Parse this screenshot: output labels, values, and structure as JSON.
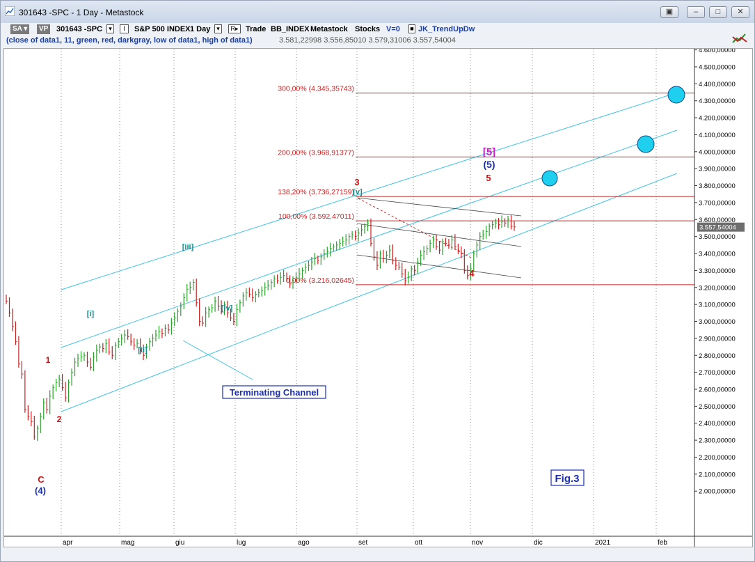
{
  "window": {
    "title": "301643 -SPC - 1 Day - Metastock",
    "buttons": [
      "▣",
      "–",
      "□",
      "✕"
    ]
  },
  "toolbar": {
    "sa_chip": "SA",
    "vp_chip": "VP",
    "symbol": "301643 -SPC",
    "indicator_box": "I",
    "instrument": "S&P 500 INDEX",
    "period": "1 Day",
    "r_box": "R",
    "trade": "Trade",
    "source": "BB_INDEX",
    "vendor": "Metastock",
    "category": "Stocks",
    "v_flag": "V=0",
    "expert": "JK_TrendUpDw",
    "formula": "(close of data1,  11,  green,  red,  darkgray,  low of data1,  high of data1)",
    "values": "3.581,22998  3.556,85010  3.579,31006  3.557,54004"
  },
  "chart_data": {
    "type": "candlestick",
    "y_axis": {
      "ticks": [
        "4.600,00000",
        "4.500,00000",
        "4.400,00000",
        "4.300,00000",
        "4.200,00000",
        "4.100,00000",
        "4.000,00000",
        "3.900,00000",
        "3.800,00000",
        "3.700,00000",
        "3.600,00000",
        "3.500,00000",
        "3.400,00000",
        "3.300,00000",
        "3.200,00000",
        "3.100,00000",
        "3.000,00000",
        "2.900,00000",
        "2.800,00000",
        "2.700,00000",
        "2.600,00000",
        "2.500,00000",
        "2.400,00000",
        "2.300,00000",
        "2.200,00000",
        "2.100,00000",
        "2.000,00000"
      ],
      "tick_values": [
        4600,
        4500,
        4400,
        4300,
        4200,
        4100,
        4000,
        3900,
        3800,
        3700,
        3600,
        3500,
        3400,
        3300,
        3200,
        3100,
        3000,
        2900,
        2800,
        2700,
        2600,
        2500,
        2400,
        2300,
        2200,
        2100,
        2000
      ],
      "last_price_label": "3.557,54004",
      "last_price": 3557.54
    },
    "x_axis": {
      "labels": [
        "apr",
        "mag",
        "giu",
        "lug",
        "ago",
        "set",
        "ott",
        "nov",
        "dic",
        "2021",
        "feb"
      ]
    },
    "fib_levels": [
      {
        "label": "300,00% (4.345,35743)",
        "value": 4345.36
      },
      {
        "label": "200,00% (3.968,91377)",
        "value": 3968.91
      },
      {
        "label": "138,20% (3.736,27159)",
        "value": 3736.27
      },
      {
        "label": "100,00% (3.592,47011)",
        "value": 3592.47
      },
      {
        "label": "0,00% (3.216,02645)",
        "value": 3216.03
      }
    ],
    "wave_labels": {
      "c": "C",
      "c4": "(4)",
      "w1": "1",
      "w2": "2",
      "w3": "3",
      "w4": "4",
      "w5": "5",
      "i": "[i]",
      "ii": "[ii]",
      "iii": "[iii]",
      "iv": "[iv]",
      "v": "[v]",
      "big5": "[5]",
      "p5": "(5)"
    },
    "annotations": {
      "channel": "Terminating Channel",
      "fig": "Fig.3"
    },
    "closes": [
      3120,
      3050,
      2970,
      2880,
      2750,
      2690,
      2480,
      2440,
      2410,
      2320,
      2370,
      2440,
      2520,
      2480,
      2560,
      2610,
      2640,
      2660,
      2610,
      2550,
      2640,
      2700,
      2760,
      2780,
      2790,
      2800,
      2760,
      2730,
      2790,
      2830,
      2850,
      2840,
      2870,
      2820,
      2800,
      2860,
      2880,
      2900,
      2920,
      2910,
      2880,
      2860,
      2870,
      2830,
      2800,
      2850,
      2880,
      2900,
      2920,
      2940,
      2930,
      2960,
      2950,
      2990,
      3020,
      3060,
      3090,
      3140,
      3190,
      3200,
      3230,
      3110,
      3000,
      2990,
      3050,
      3070,
      3080,
      3120,
      3090,
      3060,
      3100,
      3050,
      3020,
      3000,
      3070,
      3110,
      3150,
      3170,
      3160,
      3140,
      3160,
      3170,
      3180,
      3200,
      3210,
      3230,
      3250,
      3240,
      3260,
      3270,
      3250,
      3220,
      3240,
      3260,
      3280,
      3300,
      3320,
      3330,
      3350,
      3370,
      3360,
      3380,
      3400,
      3410,
      3430,
      3440,
      3450,
      3460,
      3470,
      3480,
      3500,
      3510,
      3500,
      3520,
      3540,
      3560,
      3580,
      3460,
      3380,
      3330,
      3400,
      3370,
      3390,
      3420,
      3360,
      3330,
      3320,
      3280,
      3240,
      3260,
      3310,
      3300,
      3350,
      3390,
      3410,
      3430,
      3460,
      3480,
      3440,
      3420,
      3470,
      3460,
      3450,
      3480,
      3440,
      3420,
      3400,
      3300,
      3270,
      3310,
      3400,
      3450,
      3500,
      3510,
      3530,
      3560,
      3570,
      3580,
      3570,
      3590,
      3580,
      3600,
      3560,
      3557
    ]
  }
}
